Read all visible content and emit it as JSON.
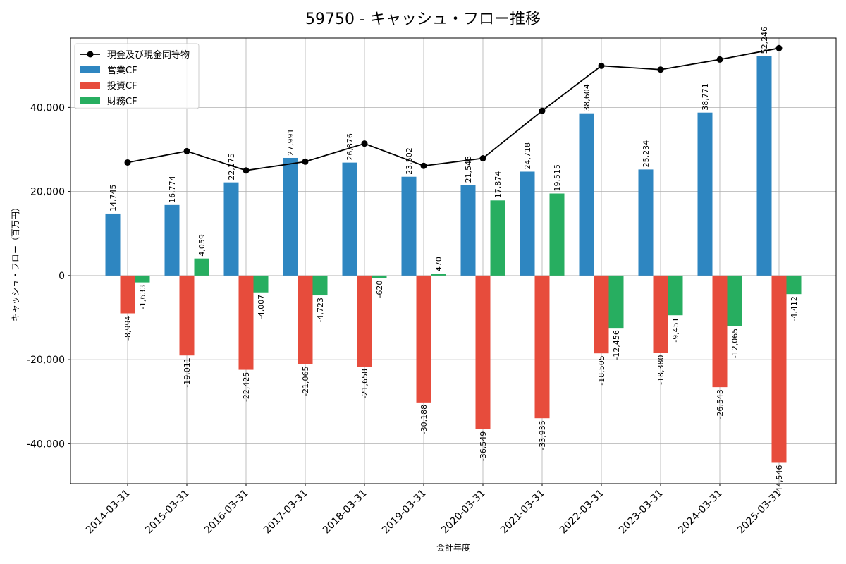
{
  "chart_data": {
    "type": "bar",
    "title": "59750 - キャッシュ・フロー推移",
    "xlabel": "会計年度",
    "ylabel": "キャッシュ・フロー（百万円）",
    "ylim": [
      -49500,
      56500
    ],
    "yticks": [
      -40000,
      -20000,
      0,
      20000,
      40000
    ],
    "ytick_labels": [
      "-40,000",
      "-20,000",
      "0",
      "20,000",
      "40,000"
    ],
    "grid": true,
    "legend_position": "top-left",
    "categories": [
      "2014-03-31",
      "2015-03-31",
      "2016-03-31",
      "2017-03-31",
      "2018-03-31",
      "2019-03-31",
      "2020-03-31",
      "2021-03-31",
      "2022-03-31",
      "2023-03-31",
      "2024-03-31",
      "2025-03-31"
    ],
    "series": [
      {
        "name": "営業CF",
        "kind": "bar",
        "color": "#2e86c1",
        "values": [
          14745,
          16774,
          22175,
          27991,
          26876,
          23502,
          21545,
          24718,
          38604,
          25234,
          38771,
          52246
        ],
        "labels": [
          "14,745",
          "16,774",
          "22,175",
          "27,991",
          "26,876",
          "23,502",
          "21,545",
          "24,718",
          "38,604",
          "25,234",
          "38,771",
          "52,246"
        ]
      },
      {
        "name": "投資CF",
        "kind": "bar",
        "color": "#e74c3c",
        "values": [
          -8994,
          -19011,
          -22425,
          -21065,
          -21658,
          -30188,
          -36549,
          -33935,
          -18505,
          -18380,
          -26543,
          -44546
        ],
        "labels": [
          "-8,994",
          "-19,011",
          "-22,425",
          "-21,065",
          "-21,658",
          "-30,188",
          "-36,549",
          "-33,935",
          "-18,505",
          "-18,380",
          "-26,543",
          "-44,546"
        ]
      },
      {
        "name": "財務CF",
        "kind": "bar",
        "color": "#27ae60",
        "values": [
          -1633,
          4059,
          -4007,
          -4723,
          -620,
          470,
          17874,
          19515,
          -12456,
          -9451,
          -12065,
          -4412
        ],
        "labels": [
          "-1,633",
          "4,059",
          "-4,007",
          "-4,723",
          "-620",
          "470",
          "17,874",
          "19,515",
          "-12,456",
          "-9,451",
          "-12,065",
          "-4,412"
        ]
      },
      {
        "name": "現金及び現金同等物",
        "kind": "line",
        "color": "#000000",
        "values": [
          26900,
          29600,
          25000,
          27100,
          31400,
          26100,
          27900,
          39200,
          49900,
          49000,
          51400,
          54100
        ]
      }
    ]
  }
}
